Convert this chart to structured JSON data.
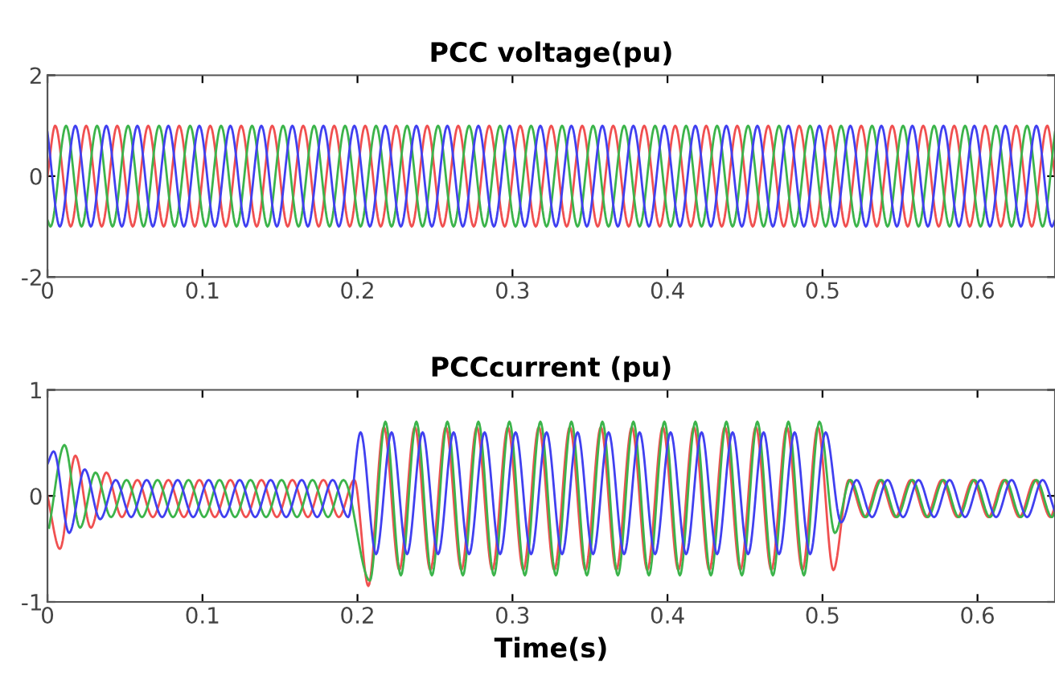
{
  "chart_data": [
    {
      "type": "line",
      "title": "PCC voltage(pu)",
      "xlim": [
        0,
        0.65
      ],
      "ylim": [
        -2,
        2
      ],
      "xticks": [
        0,
        0.1,
        0.2,
        0.3,
        0.4,
        0.5,
        0.6
      ],
      "yticks": [
        -2,
        0,
        2
      ],
      "series": [
        {
          "color": "#f05050",
          "x": [
            0,
            0.005,
            0.015,
            0.025,
            0.035,
            0.045,
            0.055,
            0.065,
            0.075,
            0.085,
            0.095,
            0.105,
            0.115,
            0.125,
            0.135,
            0.145,
            0.155,
            0.165,
            0.175,
            0.185,
            0.195,
            0.205,
            0.215,
            0.225,
            0.235,
            0.245,
            0.255,
            0.265,
            0.275,
            0.285,
            0.295,
            0.305,
            0.315,
            0.325,
            0.335,
            0.345,
            0.355,
            0.365,
            0.375,
            0.385,
            0.395,
            0.405,
            0.415,
            0.425,
            0.435,
            0.445,
            0.455,
            0.465,
            0.475,
            0.485,
            0.495,
            0.505,
            0.515,
            0.525,
            0.535,
            0.545,
            0.555,
            0.565,
            0.575,
            0.585,
            0.595,
            0.605,
            0.615,
            0.625,
            0.635,
            0.645,
            0.65
          ],
          "values": [
            0,
            1,
            -1,
            1,
            -1,
            1,
            -1,
            1,
            -1,
            1,
            -1,
            1,
            -1,
            1,
            -1,
            1,
            -1,
            1,
            -1,
            1,
            -1,
            1,
            -1,
            1,
            -1,
            1,
            -1,
            1,
            -1,
            1,
            -1,
            1,
            -1,
            1,
            -1,
            1,
            -1,
            1,
            -1,
            1,
            -1,
            1,
            -1,
            1,
            -1,
            1,
            -1,
            1,
            -1,
            1,
            -1,
            1,
            -1,
            1,
            -1,
            1,
            -1,
            1,
            -1,
            1,
            -1,
            1,
            -1,
            1,
            -1,
            1,
            0
          ]
        },
        {
          "color": "#3cb44b",
          "x": [
            0,
            0.002,
            0.012,
            0.022,
            0.032,
            0.042,
            0.052,
            0.062,
            0.072,
            0.082,
            0.092,
            0.102,
            0.112,
            0.122,
            0.132,
            0.142,
            0.152,
            0.162,
            0.172,
            0.182,
            0.192,
            0.202,
            0.212,
            0.222,
            0.232,
            0.242,
            0.252,
            0.262,
            0.272,
            0.282,
            0.292,
            0.302,
            0.312,
            0.322,
            0.332,
            0.342,
            0.352,
            0.362,
            0.372,
            0.382,
            0.392,
            0.402,
            0.412,
            0.422,
            0.432,
            0.442,
            0.452,
            0.462,
            0.472,
            0.482,
            0.492,
            0.502,
            0.512,
            0.522,
            0.532,
            0.542,
            0.552,
            0.562,
            0.572,
            0.582,
            0.592,
            0.602,
            0.612,
            0.622,
            0.632,
            0.642,
            0.65
          ],
          "values": [
            -0.87,
            -1,
            1,
            -1,
            1,
            -1,
            1,
            -1,
            1,
            -1,
            1,
            -1,
            1,
            -1,
            1,
            -1,
            1,
            -1,
            1,
            -1,
            1,
            -1,
            1,
            -1,
            1,
            -1,
            1,
            -1,
            1,
            -1,
            1,
            -1,
            1,
            -1,
            1,
            -1,
            1,
            -1,
            1,
            -1,
            1,
            -1,
            1,
            -1,
            1,
            -1,
            1,
            -1,
            1,
            -1,
            1,
            -1,
            1,
            -1,
            1,
            -1,
            1,
            -1,
            1,
            -1,
            1,
            -1,
            1,
            -1,
            1,
            -1,
            0.87
          ]
        },
        {
          "color": "#4040f0",
          "x": [
            0,
            0.008,
            0.018,
            0.028,
            0.038,
            0.048,
            0.058,
            0.068,
            0.078,
            0.088,
            0.098,
            0.108,
            0.118,
            0.128,
            0.138,
            0.148,
            0.158,
            0.168,
            0.178,
            0.188,
            0.198,
            0.208,
            0.218,
            0.228,
            0.238,
            0.248,
            0.258,
            0.268,
            0.278,
            0.288,
            0.298,
            0.308,
            0.318,
            0.328,
            0.338,
            0.348,
            0.358,
            0.368,
            0.378,
            0.388,
            0.398,
            0.408,
            0.418,
            0.428,
            0.438,
            0.448,
            0.458,
            0.468,
            0.478,
            0.488,
            0.498,
            0.508,
            0.518,
            0.528,
            0.538,
            0.548,
            0.558,
            0.568,
            0.578,
            0.588,
            0.598,
            0.608,
            0.618,
            0.628,
            0.638,
            0.648,
            0.65
          ],
          "values": [
            0.87,
            -1,
            1,
            -1,
            1,
            -1,
            1,
            -1,
            1,
            -1,
            1,
            -1,
            1,
            -1,
            1,
            -1,
            1,
            -1,
            1,
            -1,
            1,
            -1,
            1,
            -1,
            1,
            -1,
            1,
            -1,
            1,
            -1,
            1,
            -1,
            1,
            -1,
            1,
            -1,
            1,
            -1,
            1,
            -1,
            1,
            -1,
            1,
            -1,
            1,
            -1,
            1,
            -1,
            1,
            -1,
            1,
            -1,
            1,
            -1,
            1,
            -1,
            1,
            -1,
            1,
            -1,
            1,
            -1,
            1,
            -1,
            1,
            -1,
            -0.87
          ]
        }
      ]
    },
    {
      "type": "line",
      "title": "PCCcurrent (pu)",
      "xlabel": "Time(s)",
      "xlim": [
        0,
        0.65
      ],
      "ylim": [
        -1,
        1
      ],
      "xticks": [
        0,
        0.1,
        0.2,
        0.3,
        0.4,
        0.5,
        0.6
      ],
      "yticks": [
        -1,
        0,
        1
      ],
      "series": [
        {
          "color": "#f05050",
          "x": [
            0,
            0.008,
            0.018,
            0.028,
            0.038,
            0.048,
            0.058,
            0.068,
            0.078,
            0.088,
            0.098,
            0.108,
            0.118,
            0.128,
            0.138,
            0.148,
            0.158,
            0.168,
            0.178,
            0.188,
            0.198,
            0.207,
            0.217,
            0.227,
            0.237,
            0.247,
            0.257,
            0.267,
            0.277,
            0.287,
            0.297,
            0.307,
            0.317,
            0.327,
            0.337,
            0.347,
            0.357,
            0.367,
            0.377,
            0.387,
            0.397,
            0.407,
            0.417,
            0.427,
            0.437,
            0.447,
            0.457,
            0.467,
            0.477,
            0.487,
            0.497,
            0.507,
            0.517,
            0.527,
            0.537,
            0.547,
            0.557,
            0.567,
            0.577,
            0.587,
            0.597,
            0.607,
            0.617,
            0.627,
            0.637,
            0.647,
            0.65
          ],
          "values": [
            0,
            -0.5,
            0.38,
            -0.3,
            0.22,
            -0.2,
            0.15,
            -0.2,
            0.15,
            -0.2,
            0.15,
            -0.2,
            0.15,
            -0.2,
            0.15,
            -0.2,
            0.15,
            -0.2,
            0.15,
            -0.2,
            0.15,
            -0.85,
            0.65,
            -0.7,
            0.65,
            -0.7,
            0.65,
            -0.7,
            0.65,
            -0.7,
            0.65,
            -0.7,
            0.65,
            -0.7,
            0.65,
            -0.7,
            0.65,
            -0.7,
            0.65,
            -0.7,
            0.65,
            -0.7,
            0.65,
            -0.7,
            0.65,
            -0.7,
            0.65,
            -0.7,
            0.65,
            -0.7,
            0.65,
            -0.7,
            0.15,
            -0.2,
            0.15,
            -0.2,
            0.15,
            -0.2,
            0.15,
            -0.2,
            0.15,
            -0.2,
            0.15,
            -0.2,
            0.15,
            -0.2,
            -0.1
          ]
        },
        {
          "color": "#3cb44b",
          "x": [
            0.001,
            0.011,
            0.021,
            0.031,
            0.041,
            0.051,
            0.061,
            0.071,
            0.081,
            0.091,
            0.101,
            0.111,
            0.121,
            0.131,
            0.141,
            0.151,
            0.161,
            0.171,
            0.181,
            0.191,
            0.208,
            0.218,
            0.228,
            0.238,
            0.248,
            0.258,
            0.268,
            0.278,
            0.288,
            0.298,
            0.308,
            0.318,
            0.328,
            0.338,
            0.348,
            0.358,
            0.368,
            0.378,
            0.388,
            0.398,
            0.408,
            0.418,
            0.428,
            0.438,
            0.448,
            0.458,
            0.468,
            0.478,
            0.488,
            0.498,
            0.508,
            0.518,
            0.528,
            0.538,
            0.548,
            0.558,
            0.568,
            0.578,
            0.588,
            0.598,
            0.608,
            0.618,
            0.628,
            0.638,
            0.648,
            0.65
          ],
          "values": [
            -0.3,
            0.48,
            -0.3,
            0.22,
            -0.2,
            0.15,
            -0.2,
            0.15,
            -0.2,
            0.15,
            -0.2,
            0.15,
            -0.2,
            0.15,
            -0.2,
            0.15,
            -0.2,
            0.15,
            -0.2,
            0.15,
            -0.8,
            0.7,
            -0.75,
            0.7,
            -0.75,
            0.7,
            -0.75,
            0.7,
            -0.75,
            0.7,
            -0.75,
            0.7,
            -0.75,
            0.7,
            -0.75,
            0.7,
            -0.75,
            0.7,
            -0.75,
            0.7,
            -0.75,
            0.7,
            -0.75,
            0.7,
            -0.75,
            0.7,
            -0.75,
            0.7,
            -0.75,
            0.7,
            -0.35,
            0.15,
            -0.2,
            0.15,
            -0.2,
            0.15,
            -0.2,
            0.15,
            -0.2,
            0.15,
            -0.2,
            0.15,
            -0.2,
            0.15,
            -0.2,
            -0.15
          ]
        },
        {
          "color": "#4040f0",
          "x": [
            0,
            0.004,
            0.014,
            0.024,
            0.034,
            0.044,
            0.054,
            0.064,
            0.074,
            0.084,
            0.094,
            0.104,
            0.114,
            0.124,
            0.134,
            0.144,
            0.154,
            0.164,
            0.174,
            0.184,
            0.194,
            0.202,
            0.212,
            0.222,
            0.232,
            0.242,
            0.252,
            0.262,
            0.272,
            0.282,
            0.292,
            0.302,
            0.312,
            0.322,
            0.332,
            0.342,
            0.352,
            0.362,
            0.372,
            0.382,
            0.392,
            0.402,
            0.412,
            0.422,
            0.432,
            0.442,
            0.452,
            0.462,
            0.472,
            0.482,
            0.492,
            0.502,
            0.512,
            0.522,
            0.532,
            0.542,
            0.552,
            0.562,
            0.572,
            0.582,
            0.592,
            0.602,
            0.612,
            0.622,
            0.632,
            0.642,
            0.65
          ],
          "values": [
            0.3,
            0.42,
            -0.35,
            0.25,
            -0.22,
            0.15,
            -0.2,
            0.15,
            -0.2,
            0.15,
            -0.2,
            0.15,
            -0.2,
            0.15,
            -0.2,
            0.15,
            -0.2,
            0.15,
            -0.2,
            0.15,
            -0.2,
            0.6,
            -0.55,
            0.6,
            -0.55,
            0.6,
            -0.55,
            0.6,
            -0.55,
            0.6,
            -0.55,
            0.6,
            -0.55,
            0.6,
            -0.55,
            0.6,
            -0.55,
            0.6,
            -0.55,
            0.6,
            -0.55,
            0.6,
            -0.55,
            0.6,
            -0.55,
            0.6,
            -0.55,
            0.6,
            -0.55,
            0.6,
            -0.55,
            0.6,
            -0.25,
            0.15,
            -0.2,
            0.15,
            -0.2,
            0.15,
            -0.2,
            0.15,
            -0.2,
            0.15,
            -0.2,
            0.15,
            -0.2,
            0.15,
            -0.15
          ]
        }
      ]
    }
  ]
}
